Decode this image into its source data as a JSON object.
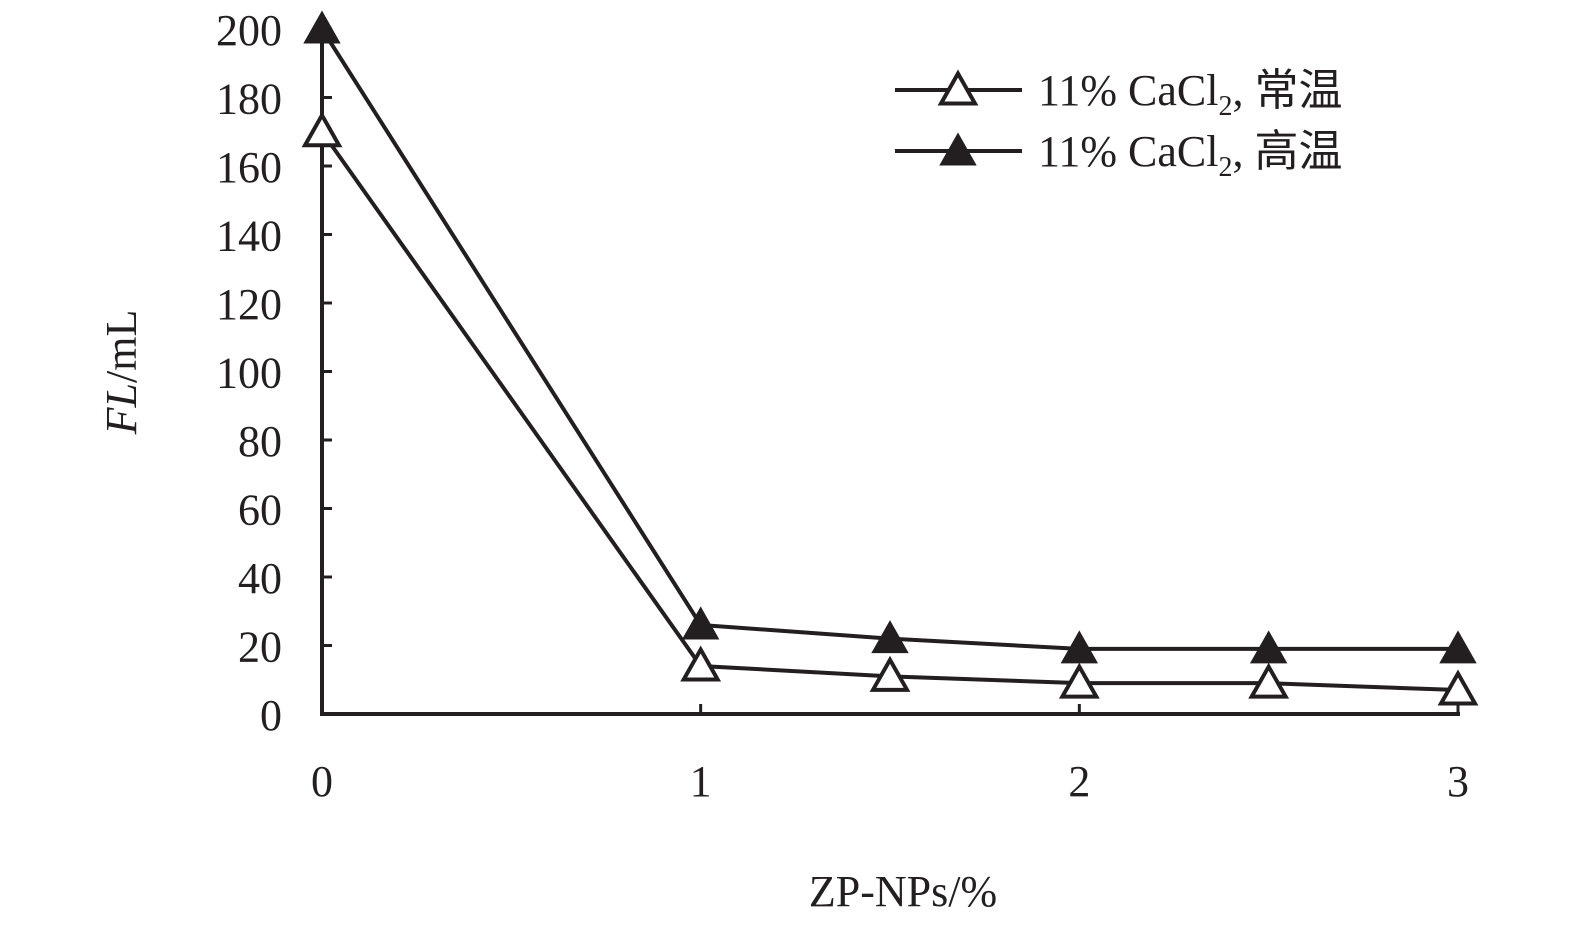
{
  "chart_data": {
    "type": "line",
    "x": [
      0,
      1,
      1.5,
      2,
      2.5,
      3
    ],
    "series": [
      {
        "name": "11% CaCl₂, 常温",
        "marker": "open-triangle",
        "values": [
          170,
          14,
          11,
          9,
          9,
          7
        ]
      },
      {
        "name": "11% CaCl₂, 高温",
        "marker": "filled-triangle",
        "values": [
          200,
          26,
          22,
          19,
          19,
          19
        ]
      }
    ],
    "xlabel": "ZP-NPs/%",
    "ylabel_italic": "FL",
    "ylabel_unit": "/mL",
    "xlim": [
      0,
      3
    ],
    "ylim": [
      0,
      200
    ],
    "x_ticks": [
      "0",
      "1",
      "2",
      "3"
    ],
    "y_ticks": [
      "0",
      "20",
      "40",
      "60",
      "80",
      "100",
      "120",
      "140",
      "160",
      "180",
      "200"
    ],
    "grid": false,
    "legend_position": "top-right",
    "line_color": "#231f20"
  }
}
